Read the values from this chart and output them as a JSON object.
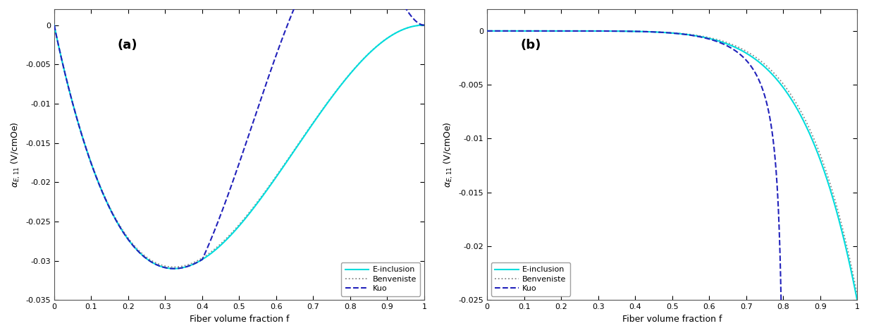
{
  "fig_width": 12.33,
  "fig_height": 4.72,
  "dpi": 100,
  "panel_a": {
    "label": "(a)",
    "xlabel": "Fiber volume fraction f",
    "xlim": [
      0,
      1.0
    ],
    "ylim": [
      -0.035,
      0.002
    ],
    "yticks": [
      0,
      -0.005,
      -0.01,
      -0.015,
      -0.02,
      -0.025,
      -0.03,
      -0.035
    ],
    "xticks": [
      0,
      0.1,
      0.2,
      0.3,
      0.4,
      0.5,
      0.6,
      0.7,
      0.8,
      0.9,
      1.0
    ],
    "legend_loc": "lower right"
  },
  "panel_b": {
    "label": "(b)",
    "xlabel": "Fiber volume fraction f",
    "xlim": [
      0,
      1.0
    ],
    "ylim": [
      -0.025,
      0.002
    ],
    "yticks": [
      0,
      -0.005,
      -0.01,
      -0.015,
      -0.02,
      -0.025
    ],
    "xticks": [
      0,
      0.1,
      0.2,
      0.3,
      0.4,
      0.5,
      0.6,
      0.7,
      0.8,
      0.9,
      1.0
    ],
    "legend_loc": "lower left"
  },
  "ylabel": "αₑ,₁₁ (V/cmOe)",
  "einclusion_color": "#00DDDD",
  "benveniste_color": "#888888",
  "kuo_color": "#2222BB",
  "lw_solid": 1.5,
  "lw_dotted": 1.3,
  "lw_dashed": 1.5,
  "legend_labels": [
    "E-inclusion",
    "Benveniste",
    "Kuo"
  ],
  "legend_fontsize": 8,
  "label_fontsize": 9,
  "tick_fontsize": 8,
  "panel_label_fontsize": 13
}
